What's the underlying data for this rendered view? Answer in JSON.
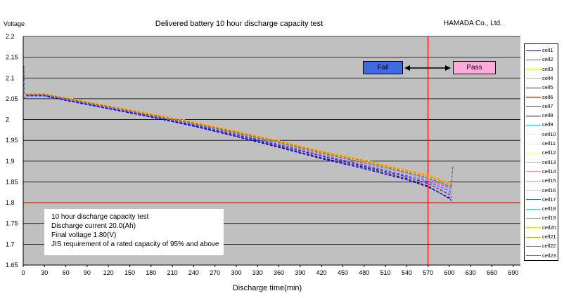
{
  "header": {
    "title": "Delivered battery 10 hour discharge capacity test",
    "company": "HAMADA Co., Ltd."
  },
  "info": {
    "line1": "10 hour discharge capacity test",
    "line2": "Discharge current  20.0(Ah)",
    "line3": "Final voltage 1.80(V)",
    "line4": "JIS requirement of a rated capacity of 95% and above"
  },
  "zones": {
    "fail_label": "Fail",
    "pass_label": "Pass",
    "fail_color": "#4169e1",
    "pass_color": "#ffaadd"
  },
  "chart_data": {
    "type": "line",
    "title": "Delivered battery 10 hour discharge capacity test",
    "xlabel": "Discharge time(min)",
    "ylabel": "Voltage",
    "xlim": [
      0,
      700
    ],
    "ylim": [
      1.65,
      2.2
    ],
    "xticks": [
      0,
      30,
      60,
      90,
      120,
      150,
      180,
      210,
      240,
      270,
      300,
      330,
      360,
      390,
      420,
      450,
      480,
      510,
      540,
      570,
      600,
      630,
      660,
      690
    ],
    "yticks": [
      1.65,
      1.7,
      1.75,
      1.8,
      1.85,
      1.9,
      1.95,
      2.0,
      2.05,
      2.1,
      2.15,
      2.2
    ],
    "ytick_labels": [
      "1.65",
      "1.7",
      "1.75",
      "1.8",
      "1.85",
      "1.9",
      "1.95",
      "2",
      "2.05",
      "2.1",
      "2.15",
      "2.2"
    ],
    "grid": true,
    "background": "#c0c0c0",
    "reference_lines": [
      {
        "axis": "y",
        "value": 1.8,
        "color": "#ff0000"
      },
      {
        "axis": "x",
        "value": 570,
        "color": "#ff0000"
      }
    ],
    "legend": "right",
    "series": [
      {
        "name": "cell1",
        "color": "#000080",
        "x": [
          0,
          5,
          30,
          60,
          120,
          180,
          240,
          300,
          360,
          420,
          480,
          540,
          570,
          600,
          603
        ],
        "y": [
          2.05,
          2.058,
          2.058,
          2.047,
          2.027,
          2.007,
          1.985,
          1.96,
          1.935,
          1.908,
          1.885,
          1.858,
          1.84,
          1.81,
          1.805
        ]
      },
      {
        "name": "cell2",
        "color": "#ff00ff",
        "x": [
          0,
          5,
          30,
          60,
          120,
          180,
          240,
          300,
          360,
          420,
          480,
          540,
          570,
          600,
          603
        ],
        "y": [
          2.05,
          2.06,
          2.06,
          2.05,
          2.03,
          2.01,
          1.99,
          1.967,
          1.943,
          1.918,
          1.895,
          1.87,
          1.856,
          1.835,
          1.825
        ]
      },
      {
        "name": "cell3",
        "color": "#ffff00",
        "x": [
          0,
          5,
          30,
          60,
          120,
          180,
          240,
          300,
          360,
          420,
          480,
          540,
          570,
          600,
          603
        ],
        "y": [
          2.05,
          2.062,
          2.062,
          2.052,
          2.033,
          2.013,
          1.993,
          1.971,
          1.947,
          1.922,
          1.9,
          1.876,
          1.864,
          1.845,
          1.84
        ]
      },
      {
        "name": "cell4",
        "color": "#00ffff",
        "x": [
          0,
          5,
          30,
          60,
          120,
          180,
          240,
          300,
          360,
          420,
          480,
          540,
          570,
          600,
          603
        ],
        "y": [
          2.05,
          2.06,
          2.06,
          2.05,
          2.03,
          2.01,
          1.99,
          1.968,
          1.945,
          1.92,
          1.897,
          1.873,
          1.86,
          1.84,
          1.832
        ]
      },
      {
        "name": "cell5",
        "color": "#800080",
        "x": [
          0,
          5,
          30,
          60,
          120,
          180,
          240,
          300,
          360,
          420,
          480,
          540,
          570,
          600,
          603
        ],
        "y": [
          2.05,
          2.059,
          2.059,
          2.048,
          2.028,
          2.008,
          1.987,
          1.963,
          1.938,
          1.912,
          1.888,
          1.862,
          1.846,
          1.82,
          1.812
        ]
      },
      {
        "name": "cell6",
        "color": "#800000",
        "x": [
          0,
          5,
          30,
          60,
          120,
          180,
          240,
          300,
          360,
          420,
          480,
          540,
          570,
          600,
          603
        ],
        "y": [
          2.05,
          2.06,
          2.06,
          2.05,
          2.03,
          2.01,
          1.99,
          1.968,
          1.944,
          1.919,
          1.896,
          1.871,
          1.858,
          1.838,
          1.83
        ]
      },
      {
        "name": "cell7",
        "color": "#008080",
        "x": [
          0,
          5,
          30,
          60,
          120,
          180,
          240,
          300,
          360,
          420,
          480,
          540,
          570,
          600,
          603
        ],
        "y": [
          2.05,
          2.061,
          2.061,
          2.051,
          2.031,
          2.011,
          1.991,
          1.969,
          1.946,
          1.921,
          1.898,
          1.874,
          1.861,
          1.842,
          1.835
        ]
      },
      {
        "name": "cell8",
        "color": "#0000ff",
        "x": [
          0,
          5,
          30,
          60,
          120,
          180,
          240,
          300,
          360,
          420,
          480,
          540,
          570,
          600,
          603
        ],
        "y": [
          2.05,
          2.057,
          2.057,
          2.046,
          2.026,
          2.006,
          1.984,
          1.959,
          1.933,
          1.906,
          1.882,
          1.855,
          1.838,
          1.812,
          1.805
        ]
      },
      {
        "name": "cell9",
        "color": "#00ccff",
        "x": [
          0,
          5,
          30,
          60,
          120,
          180,
          240,
          300,
          360,
          420,
          480,
          540,
          570,
          600,
          603
        ],
        "y": [
          2.05,
          2.06,
          2.06,
          2.05,
          2.03,
          2.01,
          1.99,
          1.967,
          1.944,
          1.919,
          1.896,
          1.872,
          1.859,
          1.839,
          1.832
        ]
      },
      {
        "name": "cell10",
        "color": "#ccffff",
        "x": [
          0,
          5,
          30,
          60,
          120,
          180,
          240,
          300,
          360,
          420,
          480,
          540,
          570,
          600,
          603
        ],
        "y": [
          2.05,
          2.061,
          2.061,
          2.051,
          2.032,
          2.012,
          1.992,
          1.97,
          1.946,
          1.921,
          1.899,
          1.875,
          1.862,
          1.843,
          1.837
        ]
      },
      {
        "name": "cell11",
        "color": "#ccffcc",
        "x": [
          0,
          5,
          30,
          60,
          120,
          180,
          240,
          300,
          360,
          420,
          480,
          540,
          570,
          600,
          603
        ],
        "y": [
          2.05,
          2.061,
          2.061,
          2.051,
          2.031,
          2.011,
          1.991,
          1.969,
          1.945,
          1.92,
          1.898,
          1.873,
          1.86,
          1.84,
          1.834
        ]
      },
      {
        "name": "cell12",
        "color": "#ffff99",
        "x": [
          0,
          5,
          30,
          60,
          120,
          180,
          240,
          300,
          360,
          420,
          480,
          540,
          570,
          600,
          603
        ],
        "y": [
          2.05,
          2.062,
          2.062,
          2.052,
          2.033,
          2.014,
          1.994,
          1.972,
          1.948,
          1.923,
          1.901,
          1.878,
          1.866,
          1.848,
          1.843
        ]
      },
      {
        "name": "cell13",
        "color": "#99ccff",
        "x": [
          0,
          5,
          30,
          60,
          120,
          180,
          240,
          300,
          360,
          420,
          480,
          540,
          570,
          600,
          603
        ],
        "y": [
          2.05,
          2.06,
          2.06,
          2.05,
          2.03,
          2.01,
          1.99,
          1.967,
          1.943,
          1.918,
          1.895,
          1.87,
          1.857,
          1.837,
          1.83
        ]
      },
      {
        "name": "cell14",
        "color": "#ff99cc",
        "x": [
          0,
          5,
          30,
          60,
          120,
          180,
          240,
          300,
          360,
          420,
          480,
          540,
          570,
          600,
          603
        ],
        "y": [
          2.05,
          2.061,
          2.061,
          2.051,
          2.031,
          2.012,
          1.992,
          1.97,
          1.946,
          1.921,
          1.899,
          1.875,
          1.862,
          1.844,
          1.838
        ]
      },
      {
        "name": "cell15",
        "color": "#cc99ff",
        "x": [
          0,
          5,
          30,
          60,
          120,
          180,
          240,
          300,
          360,
          420,
          480,
          540,
          570,
          600,
          603
        ],
        "y": [
          2.05,
          2.06,
          2.06,
          2.049,
          2.029,
          2.009,
          1.988,
          1.965,
          1.941,
          1.915,
          1.892,
          1.867,
          1.853,
          1.832,
          1.826
        ]
      },
      {
        "name": "cell16",
        "color": "#ffcc99",
        "x": [
          0,
          5,
          30,
          60,
          120,
          180,
          240,
          300,
          360,
          420,
          480,
          540,
          570,
          600,
          603
        ],
        "y": [
          2.05,
          2.062,
          2.062,
          2.052,
          2.033,
          2.013,
          1.993,
          1.971,
          1.947,
          1.922,
          1.9,
          1.877,
          1.865,
          1.846,
          1.841
        ]
      },
      {
        "name": "cell17",
        "color": "#3366ff",
        "x": [
          0,
          5,
          30,
          60,
          120,
          180,
          240,
          300,
          360,
          420,
          480,
          540,
          570,
          600,
          603
        ],
        "y": [
          2.05,
          2.059,
          2.059,
          2.049,
          2.029,
          2.009,
          1.988,
          1.965,
          1.94,
          1.914,
          1.891,
          1.865,
          1.851,
          1.828,
          1.82
        ]
      },
      {
        "name": "cell18",
        "color": "#33cccc",
        "x": [
          0,
          5,
          30,
          60,
          120,
          180,
          240,
          300,
          360,
          420,
          480,
          540,
          570,
          600,
          603
        ],
        "y": [
          2.05,
          2.06,
          2.06,
          2.05,
          2.03,
          2.01,
          1.99,
          1.968,
          1.944,
          1.919,
          1.897,
          1.872,
          1.859,
          1.84,
          1.834
        ]
      },
      {
        "name": "cell19",
        "color": "#99cc00",
        "x": [
          0,
          5,
          30,
          60,
          120,
          180,
          240,
          300,
          360,
          420,
          480,
          540,
          570,
          600,
          603
        ],
        "y": [
          2.05,
          2.061,
          2.061,
          2.051,
          2.031,
          2.011,
          1.991,
          1.969,
          1.945,
          1.92,
          1.897,
          1.873,
          1.86,
          1.841,
          1.835
        ]
      },
      {
        "name": "cell20",
        "color": "#ffcc00",
        "x": [
          0,
          5,
          30,
          60,
          120,
          180,
          240,
          300,
          360,
          420,
          480,
          540,
          570,
          600,
          603
        ],
        "y": [
          2.05,
          2.063,
          2.063,
          2.053,
          2.034,
          2.015,
          1.995,
          1.973,
          1.95,
          1.925,
          1.903,
          1.88,
          1.868,
          1.85,
          1.845
        ]
      },
      {
        "name": "cell21",
        "color": "#ff9900",
        "x": [
          0,
          5,
          30,
          60,
          120,
          180,
          240,
          300,
          360,
          420,
          480,
          540,
          570,
          600,
          603
        ],
        "y": [
          2.05,
          2.062,
          2.062,
          2.052,
          2.033,
          2.014,
          1.994,
          1.972,
          1.949,
          1.924,
          1.902,
          1.879,
          1.867,
          1.849,
          1.844
        ]
      },
      {
        "name": "cell22",
        "color": "#ff6600",
        "x": [
          0,
          5,
          30,
          60,
          120,
          180,
          240,
          300,
          360,
          420,
          480,
          540,
          570,
          600,
          603
        ],
        "y": [
          2.05,
          2.061,
          2.061,
          2.051,
          2.032,
          2.012,
          1.992,
          1.97,
          1.947,
          1.922,
          1.9,
          1.876,
          1.864,
          1.845,
          1.84
        ]
      },
      {
        "name": "cell23",
        "color": "#666699",
        "x": [
          0,
          1,
          2,
          5,
          30,
          60,
          120,
          180,
          240,
          300,
          360,
          420,
          480,
          540,
          570,
          600,
          603,
          604,
          605
        ],
        "y": [
          2.05,
          2.13,
          2.06,
          2.06,
          2.06,
          2.05,
          2.03,
          2.01,
          1.99,
          1.968,
          1.944,
          1.919,
          1.896,
          1.872,
          1.859,
          1.84,
          1.836,
          1.87,
          1.89
        ]
      }
    ]
  }
}
